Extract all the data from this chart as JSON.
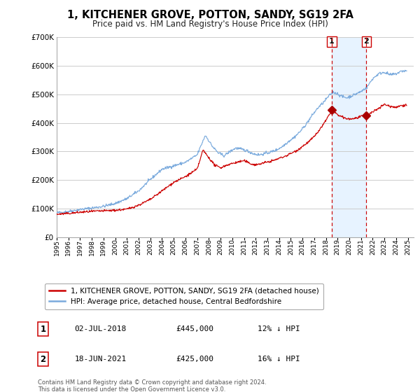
{
  "title": "1, KITCHENER GROVE, POTTON, SANDY, SG19 2FA",
  "subtitle": "Price paid vs. HM Land Registry's House Price Index (HPI)",
  "ylim": [
    0,
    700000
  ],
  "xlim_start": 1995.0,
  "xlim_end": 2025.5,
  "sale_color": "#cc0000",
  "hpi_color": "#7aaadd",
  "sale_label": "1, KITCHENER GROVE, POTTON, SANDY, SG19 2FA (detached house)",
  "hpi_label": "HPI: Average price, detached house, Central Bedfordshire",
  "transaction1_date": "02-JUL-2018",
  "transaction1_price": "£445,000",
  "transaction1_hpi": "12% ↓ HPI",
  "transaction2_date": "18-JUN-2021",
  "transaction2_price": "£425,000",
  "transaction2_hpi": "16% ↓ HPI",
  "footer": "Contains HM Land Registry data © Crown copyright and database right 2024.\nThis data is licensed under the Open Government Licence v3.0.",
  "bg_color": "#ffffff",
  "grid_color": "#cccccc",
  "vline1_x": 2018.5,
  "vline2_x": 2021.46,
  "sale_dot1_x": 2018.5,
  "sale_dot1_y": 445000,
  "sale_dot2_x": 2021.46,
  "sale_dot2_y": 425000,
  "span_color": "#ddeeff",
  "marker_color": "#aa0000"
}
